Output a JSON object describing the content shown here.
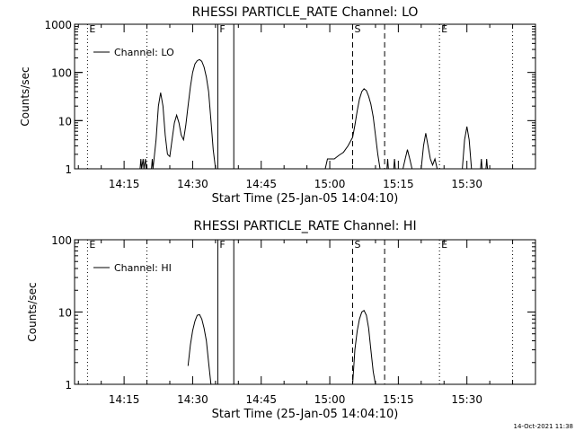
{
  "footer": {
    "timestamp": "14-Oct-2021 11:38"
  },
  "chart_data": [
    {
      "type": "line",
      "title": "RHESSI PARTICLE_RATE Channel: LO",
      "xlabel": "Start Time (25-Jan-05 14:04:10)",
      "ylabel": "Counts/sec",
      "yscale": "log",
      "xlim": [
        "14:04:10",
        "15:45:00"
      ],
      "ylim": [
        1,
        1000
      ],
      "x_ticks": [
        "14:15",
        "14:30",
        "14:45",
        "15:00",
        "15:15",
        "15:30"
      ],
      "y_ticks": [
        "1",
        "10",
        "100",
        "1000"
      ],
      "legend": {
        "position": "top-left",
        "entries": [
          "Channel: LO"
        ]
      },
      "markers": [
        {
          "time": "14:07:00",
          "label": "E",
          "style": "dotted"
        },
        {
          "time": "14:20:00",
          "label": "",
          "style": "dotted"
        },
        {
          "time": "14:35:30",
          "label": "F",
          "style": "solid"
        },
        {
          "time": "14:39:00",
          "label": "",
          "style": "solid"
        },
        {
          "time": "15:05:00",
          "label": "S",
          "style": "dashed"
        },
        {
          "time": "15:12:00",
          "label": "",
          "style": "dashed"
        },
        {
          "time": "15:24:00",
          "label": "E",
          "style": "dotted"
        },
        {
          "time": "15:40:00",
          "label": "",
          "style": "dotted"
        }
      ],
      "series": [
        {
          "name": "Channel: LO",
          "points": [
            [
              "14:18:30",
              1
            ],
            [
              "14:18:40",
              1.6
            ],
            [
              "14:18:50",
              1
            ],
            [
              "14:19:10",
              1.6
            ],
            [
              "14:19:20",
              1
            ],
            [
              "14:19:40",
              1.6
            ],
            [
              "14:19:50",
              1
            ],
            [
              "14:20:10",
              1
            ],
            [
              "14:21:00",
              1
            ],
            [
              "14:21:10",
              1.6
            ],
            [
              "14:21:20",
              1
            ],
            [
              "14:22:00",
              4
            ],
            [
              "14:22:30",
              20
            ],
            [
              "14:23:00",
              38
            ],
            [
              "14:23:30",
              20
            ],
            [
              "14:24:00",
              5
            ],
            [
              "14:24:30",
              2
            ],
            [
              "14:25:00",
              1.8
            ],
            [
              "14:25:30",
              4
            ],
            [
              "14:26:00",
              9
            ],
            [
              "14:26:30",
              13
            ],
            [
              "14:27:00",
              9
            ],
            [
              "14:27:30",
              5
            ],
            [
              "14:28:00",
              4
            ],
            [
              "14:28:30",
              8
            ],
            [
              "14:29:00",
              20
            ],
            [
              "14:29:30",
              50
            ],
            [
              "14:30:00",
              100
            ],
            [
              "14:30:30",
              150
            ],
            [
              "14:31:00",
              175
            ],
            [
              "14:31:30",
              185
            ],
            [
              "14:32:00",
              170
            ],
            [
              "14:32:30",
              130
            ],
            [
              "14:33:00",
              80
            ],
            [
              "14:33:30",
              40
            ],
            [
              "14:34:00",
              10
            ],
            [
              "14:34:30",
              2.5
            ],
            [
              "14:35:00",
              1
            ],
            [
              "14:59:00",
              1
            ],
            [
              "14:59:30",
              1.6
            ],
            [
              "15:00:00",
              1.6
            ],
            [
              "15:01:00",
              1.6
            ],
            [
              "15:02:00",
              1.9
            ],
            [
              "15:03:00",
              2.2
            ],
            [
              "15:04:00",
              3
            ],
            [
              "15:05:00",
              4.5
            ],
            [
              "15:05:30",
              8
            ],
            [
              "15:06:00",
              16
            ],
            [
              "15:06:30",
              28
            ],
            [
              "15:07:00",
              40
            ],
            [
              "15:07:30",
              46
            ],
            [
              "15:08:00",
              42
            ],
            [
              "15:08:30",
              32
            ],
            [
              "15:09:00",
              22
            ],
            [
              "15:09:30",
              12
            ],
            [
              "15:10:00",
              5
            ],
            [
              "15:10:30",
              2
            ],
            [
              "15:11:00",
              1
            ],
            [
              "15:12:30",
              1
            ],
            [
              "15:12:40",
              1.6
            ],
            [
              "15:12:50",
              1
            ],
            [
              "15:14:00",
              1
            ],
            [
              "15:14:10",
              1.6
            ],
            [
              "15:14:20",
              1
            ],
            [
              "15:16:00",
              1
            ],
            [
              "15:16:30",
              1.6
            ],
            [
              "15:17:00",
              2.5
            ],
            [
              "15:17:30",
              1.6
            ],
            [
              "15:18:00",
              1
            ],
            [
              "15:20:00",
              1
            ],
            [
              "15:20:30",
              3
            ],
            [
              "15:21:00",
              5.5
            ],
            [
              "15:21:30",
              3
            ],
            [
              "15:22:00",
              1.6
            ],
            [
              "15:22:30",
              1.2
            ],
            [
              "15:23:00",
              1.6
            ],
            [
              "15:23:30",
              1
            ],
            [
              "15:28:00",
              1
            ],
            [
              "15:29:00",
              1
            ],
            [
              "15:29:30",
              4
            ],
            [
              "15:30:00",
              7.5
            ],
            [
              "15:30:30",
              4
            ],
            [
              "15:31:00",
              1
            ],
            [
              "15:33:00",
              1
            ],
            [
              "15:33:10",
              1.6
            ],
            [
              "15:33:20",
              1
            ],
            [
              "15:34:10",
              1
            ],
            [
              "15:34:20",
              1.6
            ],
            [
              "15:34:30",
              1
            ]
          ]
        }
      ]
    },
    {
      "type": "line",
      "title": "RHESSI PARTICLE_RATE Channel: HI",
      "xlabel": "Start Time (25-Jan-05 14:04:10)",
      "ylabel": "Counts/sec",
      "yscale": "log",
      "xlim": [
        "14:04:10",
        "15:45:00"
      ],
      "ylim": [
        1,
        100
      ],
      "x_ticks": [
        "14:15",
        "14:30",
        "14:45",
        "15:00",
        "15:15",
        "15:30"
      ],
      "y_ticks": [
        "1",
        "10",
        "100"
      ],
      "legend": {
        "position": "top-left",
        "entries": [
          "Channel: HI"
        ]
      },
      "markers": [
        {
          "time": "14:07:00",
          "label": "E",
          "style": "dotted"
        },
        {
          "time": "14:20:00",
          "label": "",
          "style": "dotted"
        },
        {
          "time": "14:35:30",
          "label": "F",
          "style": "solid"
        },
        {
          "time": "14:39:00",
          "label": "",
          "style": "solid"
        },
        {
          "time": "15:05:00",
          "label": "S",
          "style": "dashed"
        },
        {
          "time": "15:12:00",
          "label": "",
          "style": "dashed"
        },
        {
          "time": "15:24:00",
          "label": "E",
          "style": "dotted"
        },
        {
          "time": "15:40:00",
          "label": "",
          "style": "dotted"
        }
      ],
      "series": [
        {
          "name": "Channel: HI",
          "points": [
            [
              "14:29:00",
              1.8
            ],
            [
              "14:29:30",
              3.5
            ],
            [
              "14:30:00",
              5.5
            ],
            [
              "14:30:30",
              7.5
            ],
            [
              "14:31:00",
              9
            ],
            [
              "14:31:30",
              9.2
            ],
            [
              "14:32:00",
              8
            ],
            [
              "14:32:30",
              6
            ],
            [
              "14:33:00",
              4
            ],
            [
              "14:33:30",
              2
            ],
            [
              "14:34:00",
              1
            ],
            [
              "15:05:00",
              1
            ],
            [
              "15:05:30",
              3
            ],
            [
              "15:06:00",
              5.5
            ],
            [
              "15:06:30",
              8
            ],
            [
              "15:07:00",
              10
            ],
            [
              "15:07:30",
              10.5
            ],
            [
              "15:08:00",
              9
            ],
            [
              "15:08:30",
              6
            ],
            [
              "15:09:00",
              3
            ],
            [
              "15:09:30",
              1.5
            ],
            [
              "15:10:00",
              1
            ]
          ]
        }
      ]
    }
  ]
}
